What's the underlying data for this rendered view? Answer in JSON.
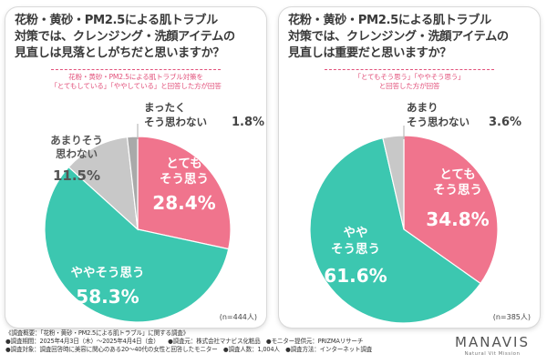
{
  "chart_data": [
    {
      "type": "pie",
      "title": "花粉・黄砂・PM2.5による肌トラブル対策では、クレンジング・洗顔アイテムの見直しは見落としがちだと思いますか？",
      "note_lines": [
        "花粉・黄砂・PM2.5による肌トラブル対策を",
        "「とてもしている」「ややしている」と回答した方が回答"
      ],
      "n_label": "(n=444人)",
      "slices": [
        {
          "label": "とてもそう思う",
          "value": 28.4,
          "value_text": "28.4%",
          "color": "#f0748d"
        },
        {
          "label": "ややそう思う",
          "value": 58.3,
          "value_text": "58.3%",
          "color": "#3cc7b0"
        },
        {
          "label": "あまりそう思わない",
          "value": 11.5,
          "value_text": "11.5%",
          "color": "#c8c8c8"
        },
        {
          "label": "まったくそう思わない",
          "value": 1.8,
          "value_text": "1.8%",
          "color": "#a9a9a9"
        }
      ]
    },
    {
      "type": "pie",
      "title": "花粉・黄砂・PM2.5による肌トラブル対策では、クレンジング・洗顔アイテムの見直しは重要だと思いますか？",
      "note_lines": [
        "「とてもそう思う」「ややそう思う」",
        "と回答した方が回答"
      ],
      "n_label": "(n=385人)",
      "slices": [
        {
          "label": "とてもそう思う",
          "value": 34.8,
          "value_text": "34.8%",
          "color": "#f0748d"
        },
        {
          "label": "ややそう思う",
          "value": 61.6,
          "value_text": "61.6%",
          "color": "#3cc7b0"
        },
        {
          "label": "あまりそう思わない",
          "value": 3.6,
          "value_text": "3.6%",
          "color": "#c8c8c8"
        }
      ]
    }
  ],
  "left": {
    "title_lines": [
      "花粉・黄砂・PM2.5による肌トラブル",
      "対策では、クレンジング・洗顔アイテムの",
      "見直しは見落としがちだと思いますか？"
    ],
    "note_1": "花粉・黄砂・PM2.5による肌トラブル対策を",
    "note_2": "「とてもしている」「ややしている」と回答した方が回答",
    "labels": {
      "s0a": "とても",
      "s0b": "そう思う",
      "s0v": "28.4%",
      "s1a": "ややそう思う",
      "s1v": "58.3%",
      "s2a": "あまりそう",
      "s2b": "思わない",
      "s2v": "11.5%",
      "s3a": "まったく",
      "s3b": "そう思わない",
      "s3v": "1.8%"
    },
    "n": "(n=444人)"
  },
  "right": {
    "title_lines": [
      "花粉・黄砂・PM2.5による肌トラブル",
      "対策では、クレンジング・洗顔アイテムの",
      "見直しは重要だと思いますか？"
    ],
    "note_1": "「とてもそう思う」「ややそう思う」",
    "note_2": "と回答した方が回答",
    "labels": {
      "s0a": "とても",
      "s0b": "そう思う",
      "s0v": "34.8%",
      "s1a": "やや",
      "s1b": "そう思う",
      "s1v": "61.6%",
      "s2a": "あまり",
      "s2b": "そう思わない",
      "s2v": "3.6%"
    },
    "n": "(n=385人)"
  },
  "footer": {
    "line1": "《調査概要：「花粉・黄砂・PM2.5による肌トラブル」に関する調査》",
    "line2": "●調査期間：2025年4月3日（木）～2025年4月4日（金）　　●調査元：株式会社マナビス化粧品　●モニター提供元：PRIZMAリサーチ",
    "line3": "●調査対象：調査回答時に美容に関心のある20～40代の女性と回答したモニター　●調査人数：1,004人　●調査方法：インターネット調査"
  },
  "brand": {
    "name": "MANAVIS",
    "sub": "Natural Vit Mission"
  }
}
